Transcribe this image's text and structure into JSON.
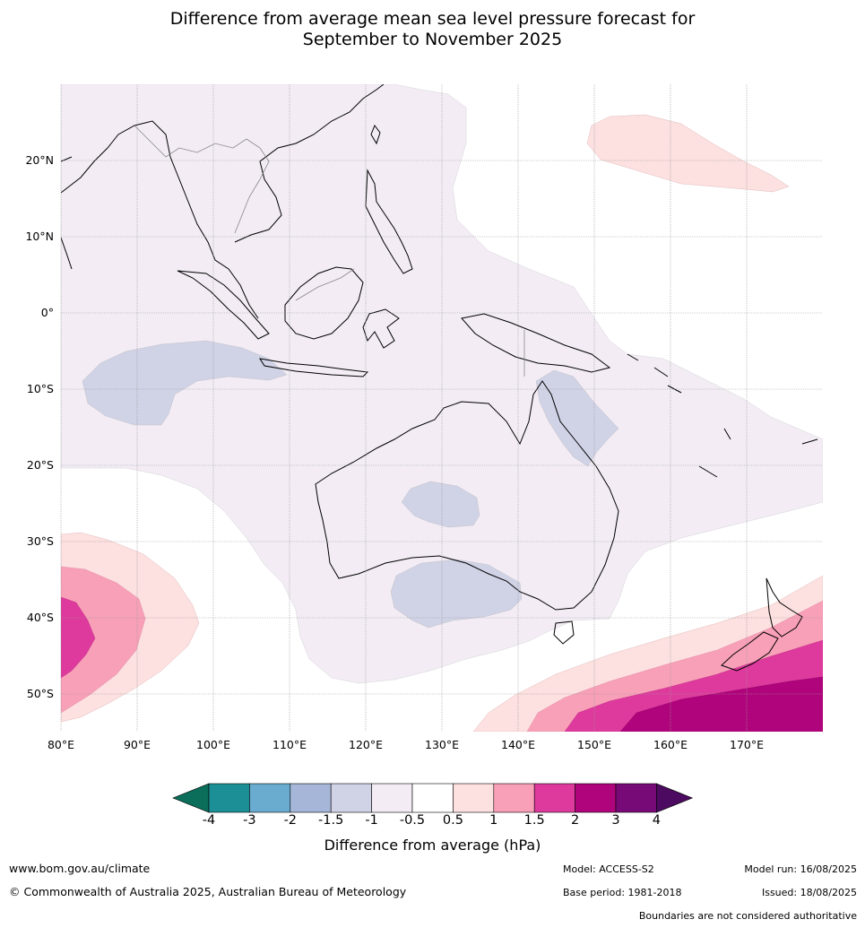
{
  "title": {
    "line1": "Difference from average mean sea level pressure forecast for",
    "line2": "September to November 2025"
  },
  "map": {
    "lat_labels": [
      "20°N",
      "10°N",
      "0°",
      "10°S",
      "20°S",
      "30°S",
      "40°S",
      "50°S"
    ],
    "lon_labels": [
      "80°E",
      "90°E",
      "100°E",
      "110°E",
      "120°E",
      "130°E",
      "140°E",
      "150°E",
      "160°E",
      "170°E"
    ]
  },
  "colorbar": {
    "ticks": [
      "-4",
      "-3",
      "-2",
      "-1.5",
      "-1",
      "-0.5",
      "0.5",
      "1",
      "1.5",
      "2",
      "3",
      "4"
    ],
    "colors": [
      "#1c8f96",
      "#6aabd0",
      "#a6b6d8",
      "#d0d2e6",
      "#f3ecf5",
      "#ffffff",
      "#fde0e0",
      "#f8a0b8",
      "#de3a9d",
      "#b0047c",
      "#780a78"
    ],
    "under_color": "#0a6e5a",
    "over_color": "#4c0a60",
    "label": "Difference from average (hPa)"
  },
  "footer": {
    "website": "www.bom.gov.au/climate",
    "copyright": "© Commonwealth of Australia 2025, Australian Bureau of Meteorology",
    "model": "Model: ACCESS-S2",
    "base_period": "Base period: 1981-2018",
    "model_run": "Model run: 16/08/2025",
    "issued": "Issued: 18/08/2025",
    "boundaries_note": "Boundaries are not considered authoritative"
  }
}
